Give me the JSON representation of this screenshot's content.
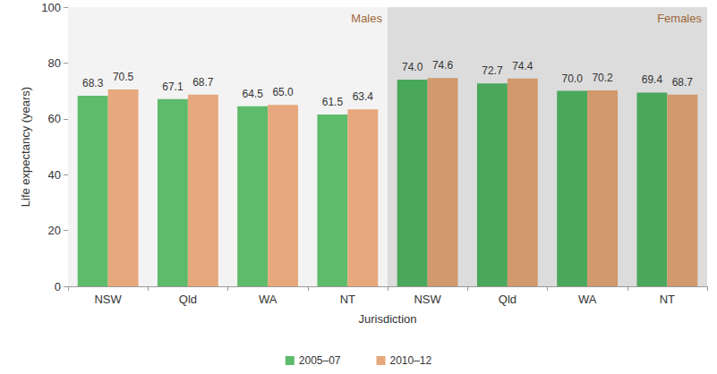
{
  "chart_data": {
    "type": "bar",
    "x_label": "Jurisdiction",
    "y_label": "Life expectancy (years)",
    "categories": [
      "NSW",
      "Qld",
      "WA",
      "NT",
      "NSW",
      "Qld",
      "WA",
      "NT"
    ],
    "annotations": [
      "Males",
      "Females"
    ],
    "series": [
      {
        "name": "2005–07",
        "color": "#5dbb6b",
        "colors": [
          "#5dbb6b",
          "#5dbb6b",
          "#5dbb6b",
          "#5dbb6b",
          "#4aa85c",
          "#4aa85c",
          "#4aa85c",
          "#4aa85c"
        ],
        "values": [
          68.3,
          67.1,
          64.5,
          61.5,
          74.0,
          72.7,
          70.0,
          69.4
        ],
        "value_labels": [
          "68.3",
          "67.1",
          "64.5",
          "61.5",
          "74.0",
          "72.7",
          "70.0",
          "69.4"
        ]
      },
      {
        "name": "2010–12",
        "color": "#e6a87c",
        "colors": [
          "#e6a87c",
          "#e6a87c",
          "#e6a87c",
          "#e6a87c",
          "#d1996c",
          "#d1996c",
          "#d1996c",
          "#d1996c"
        ],
        "values": [
          70.5,
          68.7,
          65.0,
          63.4,
          74.6,
          74.4,
          70.2,
          68.7
        ],
        "value_labels": [
          "70.5",
          "68.7",
          "65.0",
          "63.4",
          "74.6",
          "74.4",
          "70.2",
          "68.7"
        ]
      }
    ],
    "ylim": [
      0,
      100
    ],
    "yticks": [
      0,
      20,
      40,
      60,
      80,
      100
    ],
    "grid": false,
    "legend": "bottom",
    "data_labels": true
  }
}
